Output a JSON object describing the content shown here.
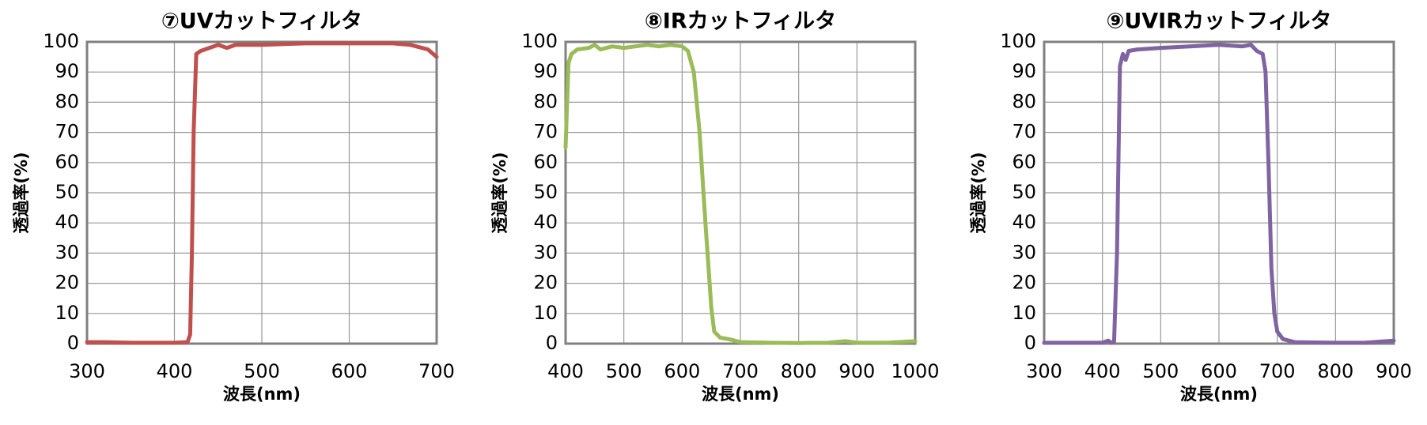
{
  "chart_data": [
    {
      "type": "line",
      "title": "⑦UVカットフィルタ",
      "x_label": "波長(nm)",
      "y_label": "透過率(%)",
      "xlim": [
        300,
        700
      ],
      "xticks": [
        300,
        400,
        500,
        600,
        700
      ],
      "ylim": [
        0,
        100
      ],
      "yticks": [
        0,
        10,
        20,
        30,
        40,
        50,
        60,
        70,
        80,
        90,
        100
      ],
      "grid": true,
      "series": [
        {
          "color": "#c0504d",
          "x": [
            300,
            320,
            350,
            400,
            415,
            418,
            420,
            422,
            425,
            430,
            440,
            450,
            460,
            470,
            500,
            550,
            600,
            650,
            670,
            690,
            700
          ],
          "values": [
            0.5,
            0.5,
            0.3,
            0.3,
            0.5,
            3,
            30,
            70,
            96,
            97,
            98,
            99,
            98,
            99,
            99,
            99.5,
            99.5,
            99.5,
            99,
            97.5,
            95
          ]
        }
      ]
    },
    {
      "type": "line",
      "title": "⑧IRカットフィルタ",
      "x_label": "波長(nm)",
      "y_label": "透過率(%)",
      "xlim": [
        400,
        1000
      ],
      "xticks": [
        400,
        500,
        600,
        700,
        800,
        900,
        1000
      ],
      "ylim": [
        0,
        100
      ],
      "yticks": [
        0,
        10,
        20,
        30,
        40,
        50,
        60,
        70,
        80,
        90,
        100
      ],
      "grid": true,
      "series": [
        {
          "color": "#9bbb59",
          "x": [
            400,
            405,
            410,
            420,
            440,
            450,
            460,
            480,
            500,
            520,
            540,
            560,
            580,
            600,
            610,
            620,
            630,
            640,
            650,
            655,
            665,
            680,
            700,
            750,
            800,
            850,
            880,
            900,
            950,
            1000
          ],
          "values": [
            65,
            93,
            96,
            97.5,
            98,
            99,
            97.5,
            98.5,
            98,
            98.5,
            99,
            98.5,
            99,
            98.5,
            97,
            90,
            70,
            40,
            12,
            4,
            2,
            1.5,
            0.5,
            0.3,
            0.2,
            0.3,
            0.8,
            0.3,
            0.3,
            0.8
          ]
        }
      ]
    },
    {
      "type": "line",
      "title": "⑨UVIRカットフィルタ",
      "x_label": "波長(nm)",
      "y_label": "透過率(%)",
      "xlim": [
        300,
        900
      ],
      "xticks": [
        300,
        400,
        500,
        600,
        700,
        800,
        900
      ],
      "ylim": [
        0,
        100
      ],
      "yticks": [
        0,
        10,
        20,
        30,
        40,
        50,
        60,
        70,
        80,
        90,
        100
      ],
      "grid": true,
      "series": [
        {
          "color": "#8064a2",
          "x": [
            300,
            400,
            410,
            415,
            420,
            425,
            430,
            435,
            440,
            445,
            460,
            500,
            550,
            600,
            640,
            655,
            665,
            675,
            680,
            685,
            690,
            695,
            700,
            710,
            730,
            800,
            850,
            900
          ],
          "values": [
            0.3,
            0.3,
            1,
            0.3,
            0.5,
            30,
            92,
            96,
            94,
            97,
            97.5,
            98,
            98.5,
            99,
            98.5,
            99,
            97,
            96,
            90,
            60,
            25,
            10,
            4,
            1.5,
            0.5,
            0.3,
            0.3,
            1
          ]
        }
      ]
    }
  ]
}
